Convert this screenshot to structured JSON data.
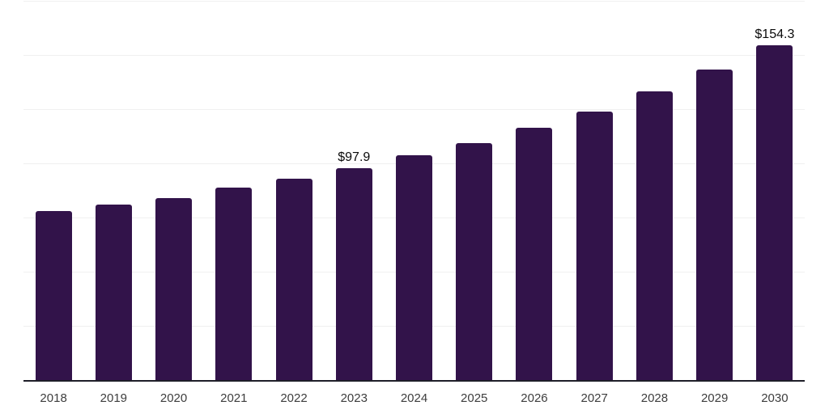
{
  "chart_data": {
    "type": "bar",
    "title": "",
    "categories": [
      "2018",
      "2019",
      "2020",
      "2021",
      "2022",
      "2023",
      "2024",
      "2025",
      "2026",
      "2027",
      "2028",
      "2029",
      "2030"
    ],
    "values": [
      78.0,
      81.0,
      84.0,
      88.8,
      93.0,
      97.9,
      103.6,
      109.5,
      116.4,
      124.0,
      133.1,
      143.4,
      154.3
    ],
    "data_labels": [
      "",
      "",
      "",
      "",
      "",
      "$97.9",
      "",
      "",
      "",
      "",
      "",
      "",
      "$154.3"
    ],
    "xlabel": "",
    "ylabel": "",
    "ylim": [
      0,
      175
    ],
    "grid_step": 25,
    "grid": true,
    "y_axis_tick_labels_visible": false,
    "legend_position": "none",
    "colors": {
      "bar_fill": "#32134a",
      "axis_line": "#1e1e28",
      "gridline": "#f0f0f0",
      "value_label_text": "#0a0a0a",
      "tick_label_text": "#3d3d3d",
      "background": "#ffffff"
    }
  }
}
